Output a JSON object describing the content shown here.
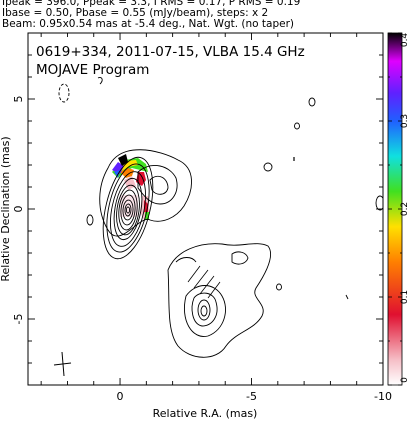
{
  "header": {
    "line1": "Ipeak = 396.0, Ppeak = 3.3, I RMS = 0.17, P RMS = 0.19",
    "line2": "Ibase = 0.50, Pbase = 0.55 (mJy/beam), steps: x 2",
    "line3": "Beam: 0.95x0.54 mas at -5.4 deg., Nat. Wgt. (no taper)"
  },
  "chart_data": {
    "type": "contour",
    "title": "0619+334, 2011-07-15, VLBA 15.4 GHz",
    "subtitle": "MOJAVE Program",
    "xlabel": "Relative R.A. (mas)",
    "ylabel": "Relative Declination (mas)",
    "xlim": [
      3.5,
      -10
    ],
    "ylim": [
      -8,
      8
    ],
    "x_ticks": [
      0,
      -5,
      -10
    ],
    "x_tick_labels": [
      "0",
      "-5",
      "-10"
    ],
    "y_ticks": [
      5,
      0,
      -5
    ],
    "y_tick_labels": [
      "5",
      "0",
      "-5"
    ],
    "colorbar": {
      "min": 0,
      "max": 0.4,
      "ticks": [
        0,
        0.1,
        0.2,
        0.3,
        0.4
      ],
      "tick_labels": [
        "0",
        "0.1",
        "0.2",
        "0.3",
        "0.4"
      ],
      "colors": [
        "#ffffff",
        "#f6c0c8",
        "#e01030",
        "#ff8000",
        "#ffe000",
        "#40e020",
        "#10e0e0",
        "#2060ff",
        "#6020ff",
        "#e000ff",
        "#000000"
      ]
    },
    "core": {
      "x": 0,
      "y": 0
    },
    "jet_component": {
      "x": -3,
      "y": -4
    },
    "beam": {
      "major_mas": 0.95,
      "minor_mas": 0.54,
      "pa_deg": -5.4
    }
  }
}
